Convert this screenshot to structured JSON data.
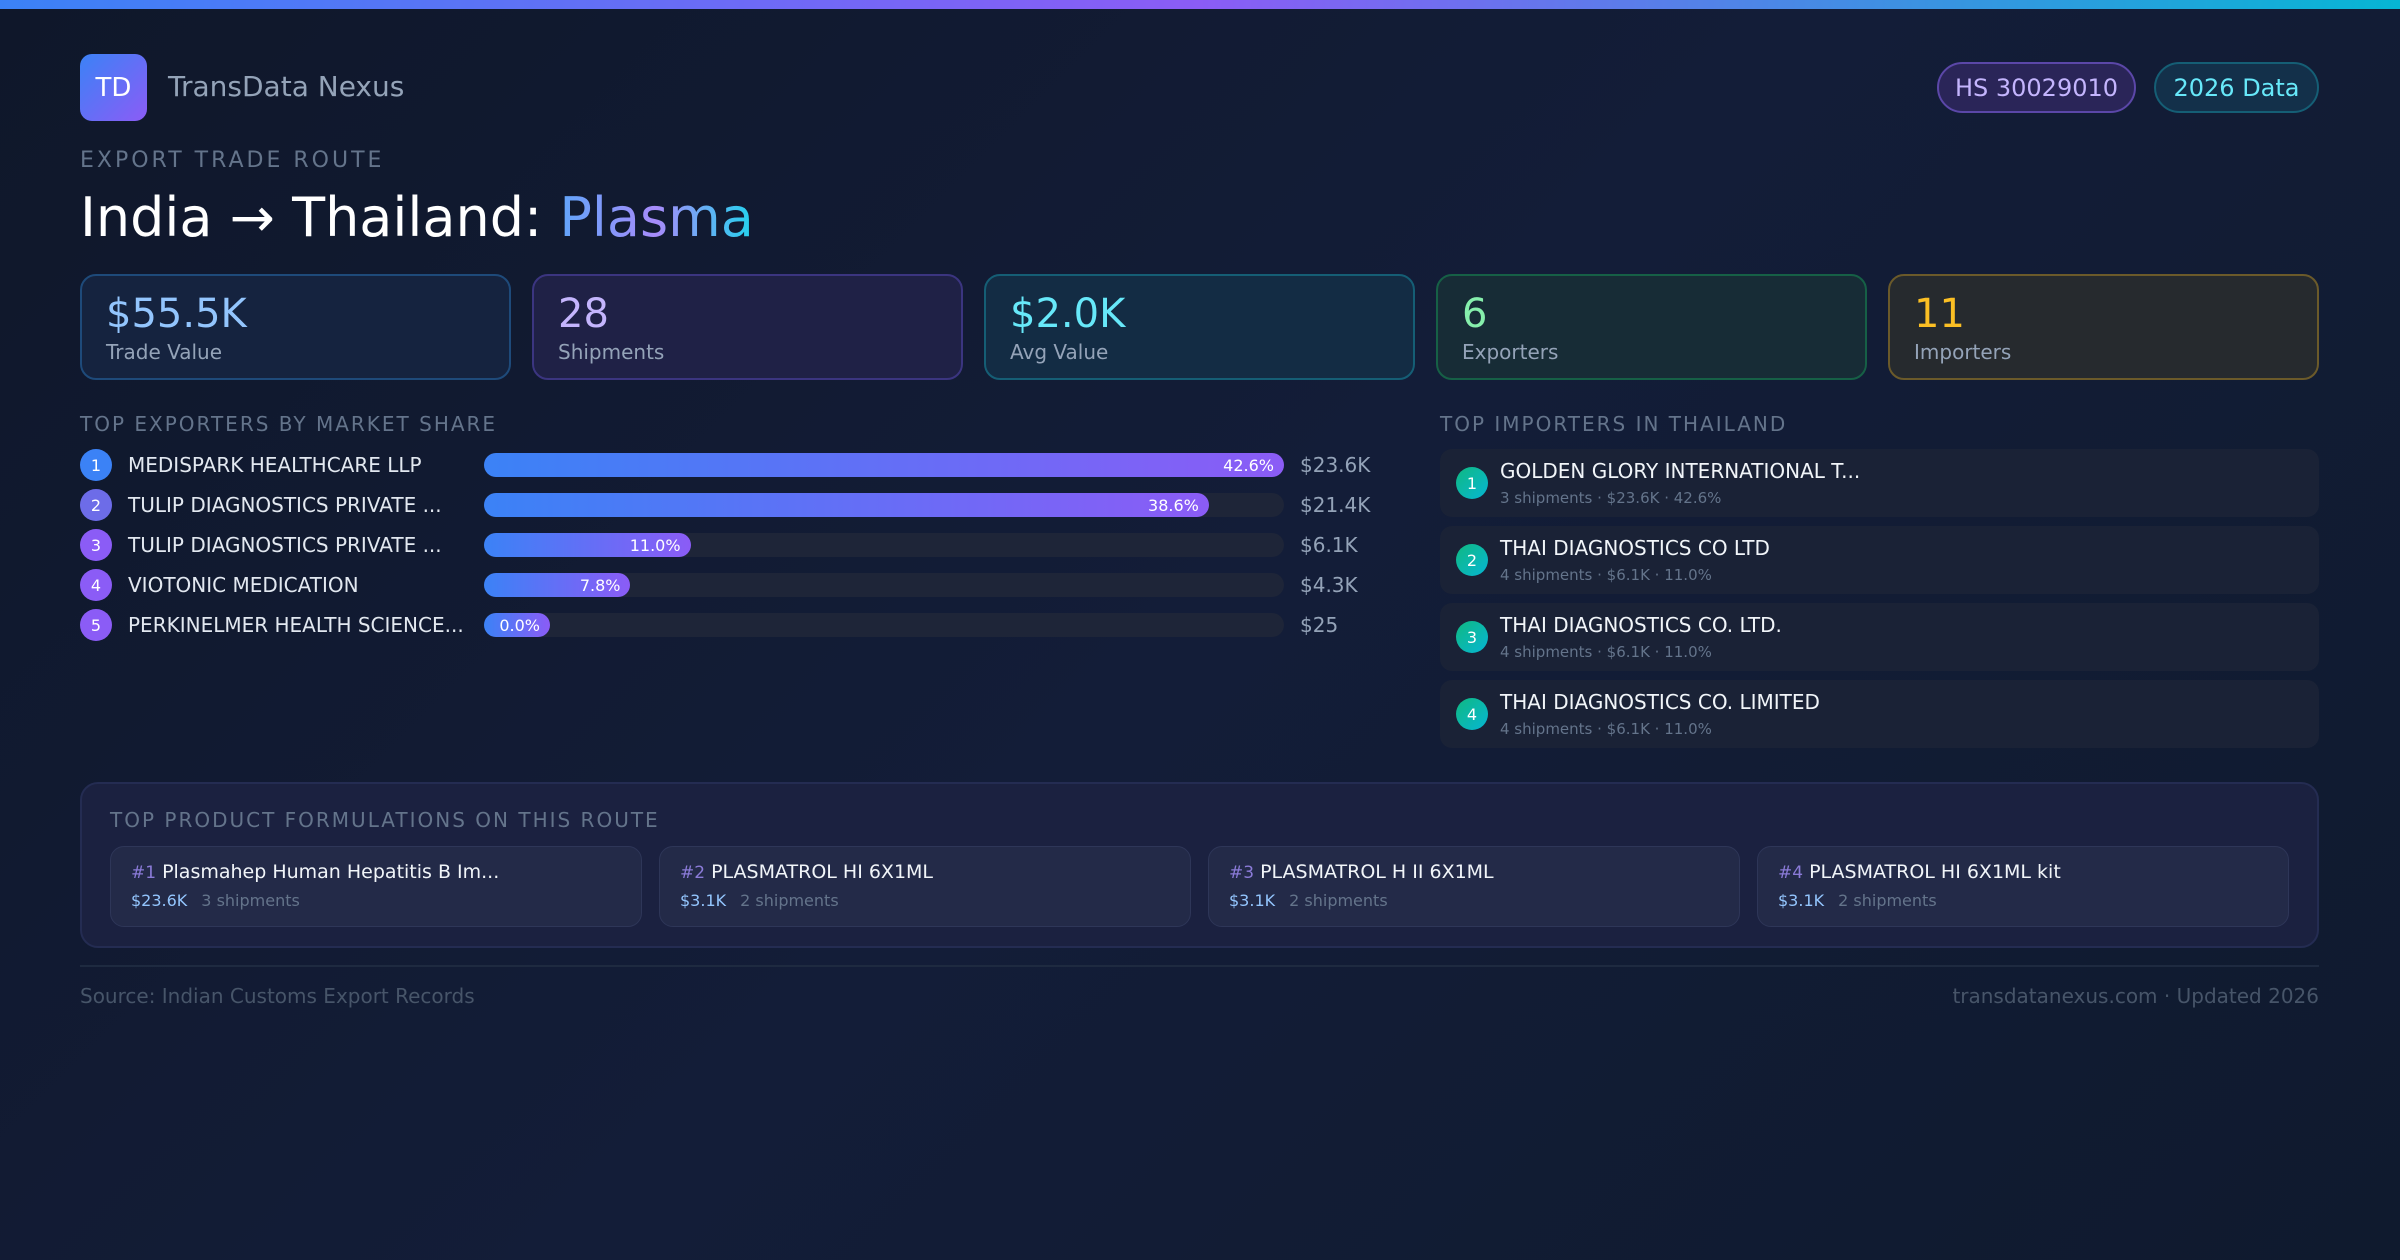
{
  "brand": {
    "logo": "TD",
    "name": "TransData Nexus"
  },
  "badges": {
    "hs": "HS 30029010",
    "year": "2026 Data"
  },
  "header": {
    "eyebrow": "EXPORT TRADE ROUTE",
    "title_prefix": "India → Thailand: ",
    "title_highlight": "Plasma"
  },
  "stats": [
    {
      "value": "$55.5K",
      "label": "Trade Value",
      "color": "#93c5fd"
    },
    {
      "value": "28",
      "label": "Shipments",
      "color": "#c4b5fd"
    },
    {
      "value": "$2.0K",
      "label": "Avg Value",
      "color": "#67e8f9"
    },
    {
      "value": "6",
      "label": "Exporters",
      "color": "#86efac"
    },
    {
      "value": "11",
      "label": "Importers",
      "color": "#fbbf24"
    }
  ],
  "exporters": {
    "heading": "TOP EXPORTERS BY MARKET SHARE",
    "items": [
      {
        "rank": "1",
        "name": "MEDISPARK HEALTHCARE LLP",
        "share_label": "42.6%",
        "share": 42.6,
        "value": "$23.6K"
      },
      {
        "rank": "2",
        "name": "TULIP DIAGNOSTICS PRIVATE ...",
        "share_label": "38.6%",
        "share": 38.6,
        "value": "$21.4K"
      },
      {
        "rank": "3",
        "name": "TULIP DIAGNOSTICS PRIVATE ...",
        "share_label": "11.0%",
        "share": 11.0,
        "value": "$6.1K"
      },
      {
        "rank": "4",
        "name": "VIOTONIC MEDICATION",
        "share_label": "7.8%",
        "share": 7.8,
        "value": "$4.3K"
      },
      {
        "rank": "5",
        "name": "PERKINELMER HEALTH SCIENCE...",
        "share_label": "0.0%",
        "share": 0.0,
        "value": "$25"
      }
    ]
  },
  "importers": {
    "heading": "TOP IMPORTERS IN THAILAND",
    "items": [
      {
        "rank": "1",
        "name": "GOLDEN GLORY INTERNATIONAL T...",
        "sub": "3 shipments · $23.6K · 42.6%"
      },
      {
        "rank": "2",
        "name": "THAI DIAGNOSTICS CO LTD",
        "sub": "4 shipments · $6.1K · 11.0%"
      },
      {
        "rank": "3",
        "name": "THAI DIAGNOSTICS CO. LTD.",
        "sub": "4 shipments · $6.1K · 11.0%"
      },
      {
        "rank": "4",
        "name": "THAI DIAGNOSTICS CO. LIMITED",
        "sub": "4 shipments · $6.1K · 11.0%"
      }
    ]
  },
  "formulations": {
    "heading": "TOP PRODUCT FORMULATIONS ON THIS ROUTE",
    "items": [
      {
        "rank": "#1",
        "name": "Plasmahep Human Hepatitis B Im...",
        "value": "$23.6K",
        "shipments": "3 shipments"
      },
      {
        "rank": "#2",
        "name": "PLASMATROL HI 6X1ML",
        "value": "$3.1K",
        "shipments": "2 shipments"
      },
      {
        "rank": "#3",
        "name": "PLASMATROL H II 6X1ML",
        "value": "$3.1K",
        "shipments": "2 shipments"
      },
      {
        "rank": "#4",
        "name": "PLASMATROL HI 6X1ML kit",
        "value": "$3.1K",
        "shipments": "2 shipments"
      }
    ]
  },
  "footer": {
    "source": "Source: Indian Customs Export Records",
    "site": "transdatanexus.com · Updated 2026"
  }
}
